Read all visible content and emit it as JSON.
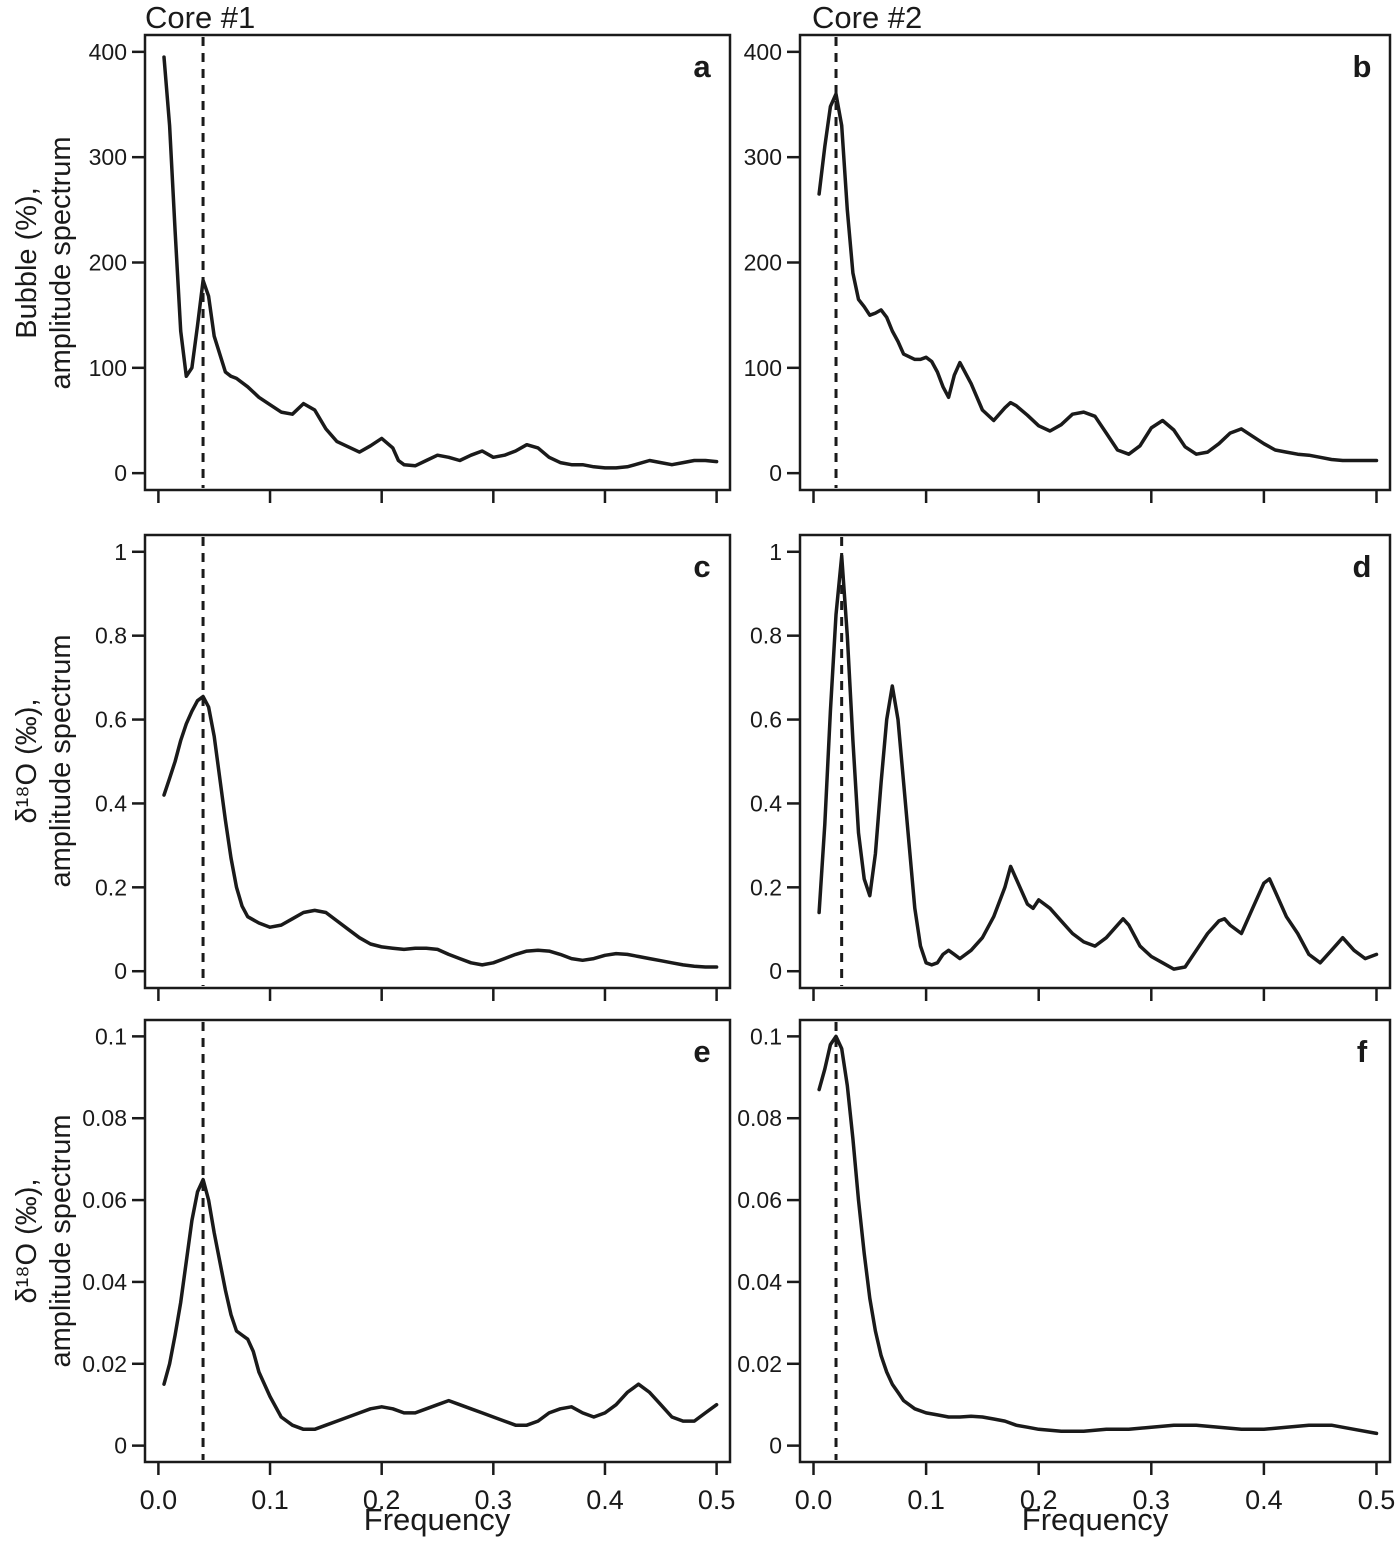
{
  "figure": {
    "col_titles": [
      "Core #1",
      "Core #2"
    ],
    "xlabel": "Frequency",
    "row_ylabels": [
      [
        "Bubble (%),",
        "amplitude spectrum"
      ],
      [
        "δ¹⁸O (‰),",
        "amplitude spectrum"
      ],
      [
        "δ¹⁸O (‰),",
        "amplitude spectrum"
      ]
    ],
    "line_color": "#1a1a1a"
  },
  "chart_data": [
    {
      "type": "line",
      "label": "a",
      "ylabel": "Bubble (%), amplitude spectrum",
      "xlim": [
        0,
        0.5
      ],
      "ylim": [
        0,
        400
      ],
      "xticks": [
        0.0,
        0.1,
        0.2,
        0.3,
        0.4,
        0.5
      ],
      "yticks": [
        0,
        100,
        200,
        300,
        400
      ],
      "ytick_labels": [
        "0",
        "100",
        "200",
        "300",
        "400"
      ],
      "show_x_labels": false,
      "dashed_x": 0.04,
      "x": [
        0.005,
        0.01,
        0.015,
        0.02,
        0.025,
        0.03,
        0.035,
        0.04,
        0.045,
        0.05,
        0.06,
        0.065,
        0.07,
        0.08,
        0.09,
        0.1,
        0.11,
        0.12,
        0.13,
        0.14,
        0.15,
        0.16,
        0.17,
        0.18,
        0.19,
        0.2,
        0.21,
        0.215,
        0.22,
        0.23,
        0.24,
        0.25,
        0.26,
        0.27,
        0.28,
        0.29,
        0.3,
        0.31,
        0.32,
        0.33,
        0.34,
        0.35,
        0.36,
        0.37,
        0.38,
        0.39,
        0.4,
        0.41,
        0.42,
        0.43,
        0.44,
        0.45,
        0.46,
        0.47,
        0.48,
        0.49,
        0.5
      ],
      "y": [
        395,
        330,
        230,
        135,
        92,
        100,
        140,
        183,
        168,
        130,
        96,
        92,
        90,
        82,
        72,
        65,
        58,
        56,
        66,
        60,
        42,
        30,
        25,
        20,
        26,
        33,
        24,
        12,
        8,
        7,
        12,
        17,
        15,
        12,
        17,
        21,
        15,
        17,
        21,
        27,
        24,
        15,
        10,
        8,
        8,
        6,
        5,
        5,
        6,
        9,
        12,
        10,
        8,
        10,
        12,
        12,
        11
      ]
    },
    {
      "type": "line",
      "label": "b",
      "ylabel": "",
      "xlim": [
        0,
        0.5
      ],
      "ylim": [
        0,
        400
      ],
      "xticks": [
        0.0,
        0.1,
        0.2,
        0.3,
        0.4,
        0.5
      ],
      "yticks": [
        0,
        100,
        200,
        300,
        400
      ],
      "ytick_labels": [
        "0",
        "100",
        "200",
        "300",
        "400"
      ],
      "show_x_labels": false,
      "dashed_x": 0.02,
      "x": [
        0.005,
        0.01,
        0.015,
        0.02,
        0.025,
        0.03,
        0.035,
        0.04,
        0.045,
        0.05,
        0.055,
        0.06,
        0.065,
        0.07,
        0.075,
        0.08,
        0.09,
        0.095,
        0.1,
        0.105,
        0.11,
        0.115,
        0.12,
        0.125,
        0.13,
        0.14,
        0.15,
        0.16,
        0.17,
        0.175,
        0.18,
        0.19,
        0.2,
        0.21,
        0.22,
        0.23,
        0.24,
        0.25,
        0.26,
        0.27,
        0.28,
        0.29,
        0.3,
        0.31,
        0.32,
        0.33,
        0.34,
        0.35,
        0.36,
        0.37,
        0.38,
        0.39,
        0.4,
        0.41,
        0.42,
        0.43,
        0.44,
        0.45,
        0.46,
        0.47,
        0.48,
        0.49,
        0.5
      ],
      "y": [
        265,
        310,
        348,
        360,
        330,
        250,
        190,
        165,
        158,
        150,
        152,
        155,
        148,
        135,
        125,
        113,
        108,
        108,
        110,
        106,
        96,
        82,
        72,
        93,
        105,
        85,
        60,
        50,
        62,
        67,
        64,
        55,
        45,
        40,
        46,
        56,
        58,
        54,
        38,
        22,
        18,
        26,
        43,
        50,
        41,
        25,
        18,
        20,
        28,
        38,
        42,
        35,
        28,
        22,
        20,
        18,
        17,
        15,
        13,
        12,
        12,
        12,
        12
      ]
    },
    {
      "type": "line",
      "label": "c",
      "ylabel": "δ¹⁸O (‰), amplitude spectrum",
      "xlim": [
        0,
        0.5
      ],
      "ylim": [
        0,
        1
      ],
      "xticks": [
        0.0,
        0.1,
        0.2,
        0.3,
        0.4,
        0.5
      ],
      "yticks": [
        0,
        0.2,
        0.4,
        0.6,
        0.8,
        1
      ],
      "ytick_labels": [
        "0",
        "0.2",
        "0.4",
        "0.6",
        "0.8",
        "1"
      ],
      "show_x_labels": false,
      "dashed_x": 0.04,
      "x": [
        0.005,
        0.01,
        0.015,
        0.02,
        0.025,
        0.03,
        0.035,
        0.04,
        0.045,
        0.05,
        0.055,
        0.06,
        0.065,
        0.07,
        0.075,
        0.08,
        0.09,
        0.1,
        0.11,
        0.12,
        0.13,
        0.14,
        0.15,
        0.16,
        0.17,
        0.18,
        0.19,
        0.2,
        0.21,
        0.22,
        0.23,
        0.24,
        0.25,
        0.26,
        0.27,
        0.28,
        0.29,
        0.3,
        0.31,
        0.32,
        0.33,
        0.34,
        0.35,
        0.36,
        0.37,
        0.38,
        0.39,
        0.4,
        0.41,
        0.42,
        0.43,
        0.44,
        0.45,
        0.46,
        0.47,
        0.48,
        0.49,
        0.5
      ],
      "y": [
        0.42,
        0.46,
        0.5,
        0.55,
        0.59,
        0.62,
        0.645,
        0.655,
        0.63,
        0.56,
        0.46,
        0.36,
        0.27,
        0.2,
        0.155,
        0.13,
        0.115,
        0.105,
        0.11,
        0.125,
        0.14,
        0.145,
        0.14,
        0.12,
        0.1,
        0.08,
        0.065,
        0.058,
        0.055,
        0.052,
        0.055,
        0.055,
        0.052,
        0.04,
        0.03,
        0.02,
        0.015,
        0.02,
        0.03,
        0.04,
        0.048,
        0.05,
        0.048,
        0.04,
        0.03,
        0.026,
        0.03,
        0.038,
        0.042,
        0.04,
        0.035,
        0.03,
        0.025,
        0.02,
        0.015,
        0.012,
        0.01,
        0.01
      ]
    },
    {
      "type": "line",
      "label": "d",
      "ylabel": "",
      "xlim": [
        0,
        0.5
      ],
      "ylim": [
        0,
        1
      ],
      "xticks": [
        0.0,
        0.1,
        0.2,
        0.3,
        0.4,
        0.5
      ],
      "yticks": [
        0,
        0.2,
        0.4,
        0.6,
        0.8,
        1
      ],
      "ytick_labels": [
        "0",
        "0.2",
        "0.4",
        "0.6",
        "0.8",
        "1"
      ],
      "show_x_labels": false,
      "dashed_x": 0.025,
      "x": [
        0.005,
        0.01,
        0.015,
        0.02,
        0.025,
        0.03,
        0.035,
        0.04,
        0.045,
        0.05,
        0.055,
        0.06,
        0.065,
        0.07,
        0.075,
        0.08,
        0.085,
        0.09,
        0.095,
        0.1,
        0.105,
        0.11,
        0.115,
        0.12,
        0.125,
        0.13,
        0.14,
        0.15,
        0.16,
        0.17,
        0.175,
        0.18,
        0.19,
        0.195,
        0.2,
        0.21,
        0.22,
        0.23,
        0.24,
        0.25,
        0.26,
        0.27,
        0.275,
        0.28,
        0.29,
        0.3,
        0.31,
        0.32,
        0.33,
        0.34,
        0.35,
        0.36,
        0.365,
        0.37,
        0.38,
        0.39,
        0.4,
        0.405,
        0.41,
        0.42,
        0.43,
        0.44,
        0.45,
        0.46,
        0.47,
        0.48,
        0.49,
        0.5
      ],
      "y": [
        0.14,
        0.35,
        0.62,
        0.85,
        0.99,
        0.8,
        0.55,
        0.33,
        0.22,
        0.18,
        0.28,
        0.45,
        0.6,
        0.68,
        0.6,
        0.45,
        0.3,
        0.15,
        0.06,
        0.02,
        0.015,
        0.02,
        0.04,
        0.05,
        0.04,
        0.03,
        0.05,
        0.08,
        0.13,
        0.2,
        0.25,
        0.22,
        0.16,
        0.15,
        0.17,
        0.15,
        0.12,
        0.09,
        0.07,
        0.06,
        0.08,
        0.11,
        0.125,
        0.11,
        0.06,
        0.035,
        0.02,
        0.005,
        0.01,
        0.05,
        0.09,
        0.12,
        0.125,
        0.11,
        0.09,
        0.15,
        0.21,
        0.22,
        0.19,
        0.13,
        0.09,
        0.04,
        0.02,
        0.05,
        0.08,
        0.05,
        0.03,
        0.04
      ]
    },
    {
      "type": "line",
      "label": "e",
      "ylabel": "δ¹⁸O (‰), amplitude spectrum",
      "xlim": [
        0,
        0.5
      ],
      "ylim": [
        0,
        0.1
      ],
      "xticks": [
        0.0,
        0.1,
        0.2,
        0.3,
        0.4,
        0.5
      ],
      "yticks": [
        0,
        0.02,
        0.04,
        0.06,
        0.08,
        0.1
      ],
      "ytick_labels": [
        "0",
        "0.02",
        "0.04",
        "0.06",
        "0.08",
        "0.1"
      ],
      "xtick_labels": [
        "0.0",
        "0.1",
        "0.2",
        "0.3",
        "0.4",
        "0.5"
      ],
      "show_x_labels": true,
      "dashed_x": 0.04,
      "x": [
        0.005,
        0.01,
        0.015,
        0.02,
        0.025,
        0.03,
        0.035,
        0.04,
        0.045,
        0.05,
        0.055,
        0.06,
        0.065,
        0.07,
        0.075,
        0.08,
        0.085,
        0.09,
        0.1,
        0.11,
        0.12,
        0.13,
        0.14,
        0.15,
        0.16,
        0.17,
        0.18,
        0.19,
        0.2,
        0.21,
        0.22,
        0.23,
        0.24,
        0.25,
        0.26,
        0.27,
        0.28,
        0.29,
        0.3,
        0.31,
        0.32,
        0.33,
        0.34,
        0.35,
        0.36,
        0.37,
        0.38,
        0.39,
        0.4,
        0.41,
        0.42,
        0.43,
        0.44,
        0.45,
        0.46,
        0.47,
        0.48,
        0.49,
        0.5
      ],
      "y": [
        0.015,
        0.02,
        0.027,
        0.035,
        0.045,
        0.055,
        0.062,
        0.065,
        0.06,
        0.052,
        0.045,
        0.038,
        0.032,
        0.028,
        0.027,
        0.026,
        0.023,
        0.018,
        0.012,
        0.007,
        0.005,
        0.004,
        0.004,
        0.005,
        0.006,
        0.007,
        0.008,
        0.009,
        0.0095,
        0.009,
        0.008,
        0.008,
        0.009,
        0.01,
        0.011,
        0.01,
        0.009,
        0.008,
        0.007,
        0.006,
        0.005,
        0.005,
        0.006,
        0.008,
        0.009,
        0.0095,
        0.008,
        0.007,
        0.008,
        0.01,
        0.013,
        0.015,
        0.013,
        0.01,
        0.007,
        0.006,
        0.006,
        0.008,
        0.01
      ]
    },
    {
      "type": "line",
      "label": "f",
      "ylabel": "",
      "xlim": [
        0,
        0.5
      ],
      "ylim": [
        0,
        0.1
      ],
      "xticks": [
        0.0,
        0.1,
        0.2,
        0.3,
        0.4,
        0.5
      ],
      "yticks": [
        0,
        0.02,
        0.04,
        0.06,
        0.08,
        0.1
      ],
      "ytick_labels": [
        "0",
        "0.02",
        "0.04",
        "0.06",
        "0.08",
        "0.1"
      ],
      "xtick_labels": [
        "0.0",
        "0.1",
        "0.2",
        "0.3",
        "0.4",
        "0.5"
      ],
      "show_x_labels": true,
      "dashed_x": 0.02,
      "x": [
        0.005,
        0.01,
        0.015,
        0.02,
        0.025,
        0.03,
        0.035,
        0.04,
        0.045,
        0.05,
        0.055,
        0.06,
        0.065,
        0.07,
        0.075,
        0.08,
        0.09,
        0.1,
        0.11,
        0.12,
        0.13,
        0.14,
        0.15,
        0.16,
        0.17,
        0.18,
        0.19,
        0.2,
        0.22,
        0.24,
        0.26,
        0.28,
        0.3,
        0.32,
        0.34,
        0.36,
        0.38,
        0.4,
        0.42,
        0.44,
        0.46,
        0.48,
        0.5
      ],
      "y": [
        0.087,
        0.092,
        0.098,
        0.1,
        0.097,
        0.088,
        0.075,
        0.06,
        0.047,
        0.036,
        0.028,
        0.022,
        0.018,
        0.015,
        0.013,
        0.011,
        0.009,
        0.008,
        0.0075,
        0.007,
        0.007,
        0.0072,
        0.007,
        0.0065,
        0.006,
        0.005,
        0.0045,
        0.004,
        0.0035,
        0.0035,
        0.004,
        0.004,
        0.0045,
        0.005,
        0.005,
        0.0045,
        0.004,
        0.004,
        0.0045,
        0.005,
        0.005,
        0.004,
        0.003
      ]
    }
  ]
}
